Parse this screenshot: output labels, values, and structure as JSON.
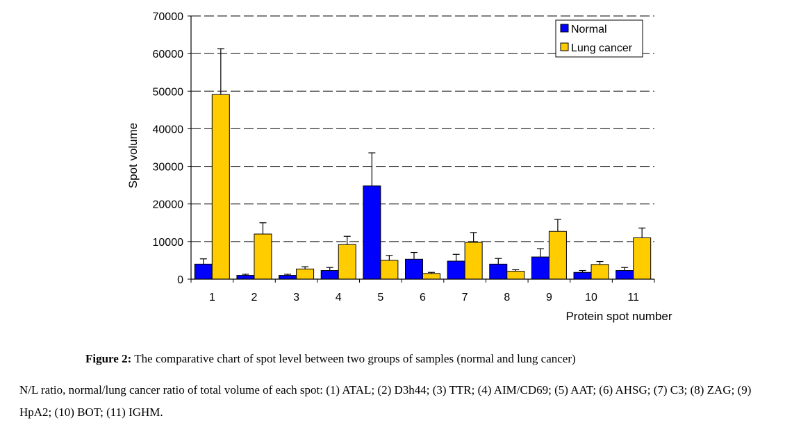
{
  "chart_data": {
    "type": "bar",
    "categories": [
      "1",
      "2",
      "3",
      "4",
      "5",
      "6",
      "7",
      "8",
      "9",
      "10",
      "11"
    ],
    "series": [
      {
        "name": "Normal",
        "color": "#0000ff",
        "values": [
          4000,
          1000,
          1000,
          2300,
          24800,
          5300,
          4800,
          4000,
          5900,
          1800,
          2300
        ],
        "errors": [
          1400,
          300,
          300,
          800,
          8800,
          1800,
          1800,
          1500,
          2200,
          500,
          800
        ]
      },
      {
        "name": "Lung cancer",
        "color": "#ffcc00",
        "values": [
          49100,
          12000,
          2700,
          9200,
          5000,
          1500,
          9800,
          2100,
          12700,
          3900,
          11000
        ],
        "errors": [
          12200,
          3000,
          600,
          2200,
          1300,
          300,
          2600,
          400,
          3200,
          800,
          2600
        ]
      }
    ],
    "yticks": [
      "0",
      "10000",
      "20000",
      "30000",
      "40000",
      "50000",
      "60000",
      "70000"
    ],
    "ylim": [
      0,
      70000
    ],
    "xlabel": "Protein spot number",
    "ylabel": "Spot volume",
    "legend": "top-right",
    "grid": "dashed horizontal"
  },
  "caption": {
    "label": "Figure 2:",
    "text": "The comparative chart of spot level between two groups of samples (normal and lung cancer)"
  },
  "note": "N/L ratio, normal/lung cancer ratio of total volume of each spot: (1) ATAL; (2) D3h44; (3) TTR; (4) AIM/CD69; (5) AAT; (6) AHSG; (7) C3; (8) ZAG; (9) HpA2; (10) BOT; (11) IGHM."
}
